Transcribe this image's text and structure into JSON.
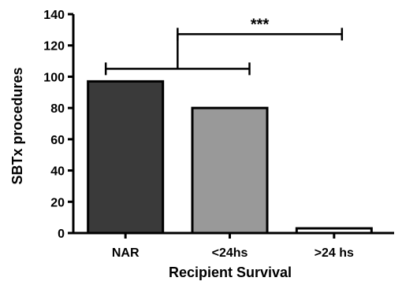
{
  "chart_data": {
    "type": "bar",
    "title": "",
    "xlabel": "Recipient Survival",
    "ylabel": "SBTx procedures",
    "categories": [
      "NAR",
      "<24hs",
      ">24 hs"
    ],
    "values": [
      97,
      80,
      3
    ],
    "ylim": [
      0,
      140
    ],
    "yticks": [
      0,
      20,
      40,
      60,
      80,
      100,
      120,
      140
    ],
    "grid": false,
    "legend": "none",
    "bar_colors": [
      "#3a3a3a",
      "#999999",
      "#ffffff"
    ],
    "edge_color": "#000000",
    "significance": [
      {
        "from": [
          0,
          1
        ],
        "to": [
          1,
          2
        ],
        "label": "***"
      }
    ]
  }
}
